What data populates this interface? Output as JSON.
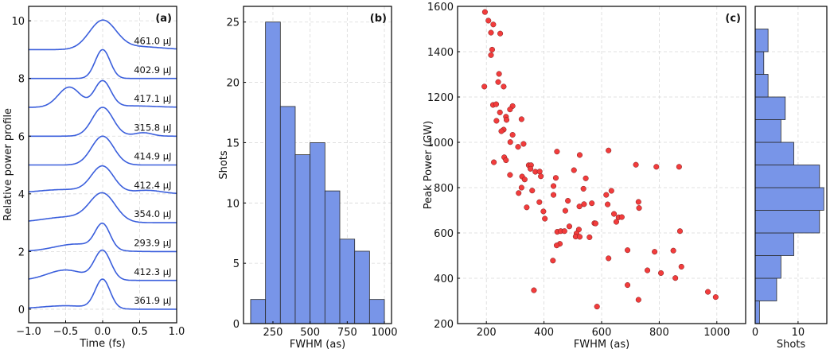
{
  "colors": {
    "line": "#3b5fdc",
    "bar": "#7895e8",
    "bar_edge": "#2a2a2a",
    "point": "#f23c3c",
    "point_edge": "#7a1a1a",
    "grid": "#d9d9d9"
  },
  "chart_data": [
    {
      "id": "a",
      "type": "line",
      "panel_label": "(a)",
      "xlabel": "Time (fs)",
      "ylabel": "Relative power profile",
      "xlim": [
        -1.0,
        1.0
      ],
      "ylim": [
        -0.47,
        10.5
      ],
      "xticks": [
        "−1.0",
        "−0.5",
        "0.0",
        "0.5",
        "1.0"
      ],
      "xtick_values": [
        -1.0,
        -0.5,
        0.0,
        0.5,
        1.0
      ],
      "yticks": [
        "0",
        "2",
        "4",
        "6",
        "8",
        "10"
      ],
      "ytick_values": [
        0,
        2,
        4,
        6,
        8,
        10
      ],
      "grid": true,
      "profile_model": "sum of gaussians [amplitude, center_fs, sigma_fs] added to vertical offset",
      "traces": [
        {
          "offset": 0,
          "label": "361.9 µJ",
          "components": [
            [
              1.0,
              0,
              0.1
            ],
            [
              0.12,
              -0.5,
              0.35
            ]
          ]
        },
        {
          "offset": 1,
          "label": "412.3 µJ",
          "components": [
            [
              1.0,
              0,
              0.11
            ],
            [
              0.36,
              -0.5,
              0.25
            ]
          ]
        },
        {
          "offset": 2,
          "label": "293.9 µJ",
          "components": [
            [
              0.85,
              0,
              0.1
            ],
            [
              0.26,
              -0.35,
              0.3
            ]
          ]
        },
        {
          "offset": 3,
          "label": "354.0 µJ",
          "components": [
            [
              0.95,
              0,
              0.17
            ],
            [
              0.2,
              -0.45,
              0.35
            ]
          ]
        },
        {
          "offset": 4,
          "label": "412.4 µJ",
          "components": [
            [
              0.9,
              0,
              0.15
            ],
            [
              0.15,
              -0.5,
              0.4
            ],
            [
              0.12,
              0.6,
              0.2
            ]
          ]
        },
        {
          "offset": 5,
          "label": "414.9 µJ",
          "components": [
            [
              1.0,
              0,
              0.15
            ]
          ]
        },
        {
          "offset": 6,
          "label": "315.8 µJ",
          "components": [
            [
              1.0,
              0,
              0.14
            ],
            [
              0.12,
              0.55,
              0.12
            ]
          ]
        },
        {
          "offset": 7,
          "label": "417.1 µJ",
          "components": [
            [
              0.9,
              0,
              0.11
            ],
            [
              0.7,
              -0.45,
              0.15
            ],
            [
              0.05,
              0.4,
              0.3
            ]
          ]
        },
        {
          "offset": 8,
          "label": "402.9 µJ",
          "components": [
            [
              1.0,
              0,
              0.1
            ]
          ]
        },
        {
          "offset": 9,
          "label": "461.0 µJ",
          "components": [
            [
              1.0,
              0,
              0.18
            ],
            [
              0.1,
              0.5,
              0.3
            ]
          ]
        }
      ]
    },
    {
      "id": "b",
      "type": "bar",
      "panel_label": "(b)",
      "xlabel": "FWHM (as)",
      "ylabel": "Shots",
      "xlim": [
        52,
        1048
      ],
      "ylim": [
        0,
        26.3
      ],
      "xticks": [
        "250",
        "500",
        "750",
        "1000"
      ],
      "xtick_values": [
        250,
        500,
        750,
        1000
      ],
      "yticks": [
        "0",
        "5",
        "10",
        "15",
        "20",
        "25"
      ],
      "ytick_values": [
        0,
        5,
        10,
        15,
        20,
        25
      ],
      "grid": true,
      "bin_edges": [
        100,
        200,
        300,
        400,
        500,
        600,
        700,
        800,
        900,
        1000
      ],
      "values": [
        2,
        25,
        18,
        14,
        15,
        11,
        7,
        6,
        2
      ]
    },
    {
      "id": "c",
      "type": "scatter",
      "panel_label": "(c)",
      "xlabel": "FWHM (as)",
      "ylabel": "Peak Power (GW)",
      "xlim": [
        100,
        1100
      ],
      "ylim": [
        200,
        1600
      ],
      "xticks": [
        "200",
        "400",
        "600",
        "800",
        "1000"
      ],
      "xtick_values": [
        200,
        400,
        600,
        800,
        1000
      ],
      "yticks": [
        "200",
        "400",
        "600",
        "800",
        "1000",
        "1200",
        "1400",
        "1600"
      ],
      "ytick_values": [
        200,
        400,
        600,
        800,
        1000,
        1200,
        1400,
        1600
      ],
      "grid": true,
      "points": [
        [
          195,
          1575
        ],
        [
          207,
          1537
        ],
        [
          224,
          1520
        ],
        [
          216,
          1484
        ],
        [
          248,
          1480
        ],
        [
          220,
          1409
        ],
        [
          216,
          1385
        ],
        [
          244,
          1302
        ],
        [
          241,
          1266
        ],
        [
          193,
          1246
        ],
        [
          260,
          1246
        ],
        [
          223,
          1165
        ],
        [
          234,
          1168
        ],
        [
          291,
          1160
        ],
        [
          282,
          1145
        ],
        [
          247,
          1132
        ],
        [
          268,
          1113
        ],
        [
          270,
          1099
        ],
        [
          235,
          1095
        ],
        [
          322,
          1102
        ],
        [
          260,
          1056
        ],
        [
          252,
          1049
        ],
        [
          291,
          1033
        ],
        [
          283,
          1001
        ],
        [
          329,
          993
        ],
        [
          310,
          980
        ],
        [
          262,
          934
        ],
        [
          268,
          921
        ],
        [
          226,
          912
        ],
        [
          282,
          856
        ],
        [
          347,
          899
        ],
        [
          355,
          899
        ],
        [
          353,
          883
        ],
        [
          370,
          870
        ],
        [
          385,
          871
        ],
        [
          389,
          850
        ],
        [
          324,
          849
        ],
        [
          333,
          836
        ],
        [
          322,
          800
        ],
        [
          312,
          776
        ],
        [
          359,
          787
        ],
        [
          340,
          713
        ],
        [
          384,
          736
        ],
        [
          398,
          695
        ],
        [
          403,
          663
        ],
        [
          365,
          347
        ],
        [
          445,
          959
        ],
        [
          441,
          843
        ],
        [
          433,
          807
        ],
        [
          433,
          768
        ],
        [
          524,
          944
        ],
        [
          504,
          877
        ],
        [
          545,
          841
        ],
        [
          537,
          795
        ],
        [
          483,
          742
        ],
        [
          474,
          698
        ],
        [
          539,
          727
        ],
        [
          566,
          731
        ],
        [
          523,
          717
        ],
        [
          488,
          629
        ],
        [
          446,
          605
        ],
        [
          458,
          608
        ],
        [
          471,
          608
        ],
        [
          521,
          615
        ],
        [
          513,
          598
        ],
        [
          510,
          584
        ],
        [
          524,
          583
        ],
        [
          558,
          581
        ],
        [
          575,
          643
        ],
        [
          579,
          642
        ],
        [
          455,
          552
        ],
        [
          444,
          545
        ],
        [
          431,
          478
        ],
        [
          584,
          275
        ],
        [
          624,
          964
        ],
        [
          616,
          768
        ],
        [
          634,
          786
        ],
        [
          621,
          726
        ],
        [
          643,
          684
        ],
        [
          659,
          669
        ],
        [
          670,
          670
        ],
        [
          651,
          649
        ],
        [
          624,
          488
        ],
        [
          690,
          524
        ],
        [
          690,
          370
        ],
        [
          719,
          901
        ],
        [
          728,
          737
        ],
        [
          730,
          710
        ],
        [
          728,
          305
        ],
        [
          790,
          892
        ],
        [
          784,
          517
        ],
        [
          759,
          435
        ],
        [
          806,
          423
        ],
        [
          869,
          892
        ],
        [
          872,
          608
        ],
        [
          849,
          522
        ],
        [
          877,
          451
        ],
        [
          856,
          401
        ],
        [
          969,
          340
        ],
        [
          996,
          317
        ]
      ]
    },
    {
      "id": "d",
      "type": "bar",
      "orientation": "horizontal",
      "xlabel": "Shots",
      "xlim": [
        0,
        16.7
      ],
      "ylim": [
        200,
        1600
      ],
      "xticks": [
        "0",
        "10"
      ],
      "xtick_values": [
        0,
        10
      ],
      "grid": true,
      "bin_edges": [
        200,
        300,
        400,
        500,
        600,
        700,
        800,
        900,
        1000,
        1100,
        1200,
        1300,
        1400,
        1500
      ],
      "values": [
        1,
        5,
        6,
        9,
        15,
        16,
        15,
        9,
        6,
        7,
        3,
        2,
        3
      ]
    }
  ]
}
